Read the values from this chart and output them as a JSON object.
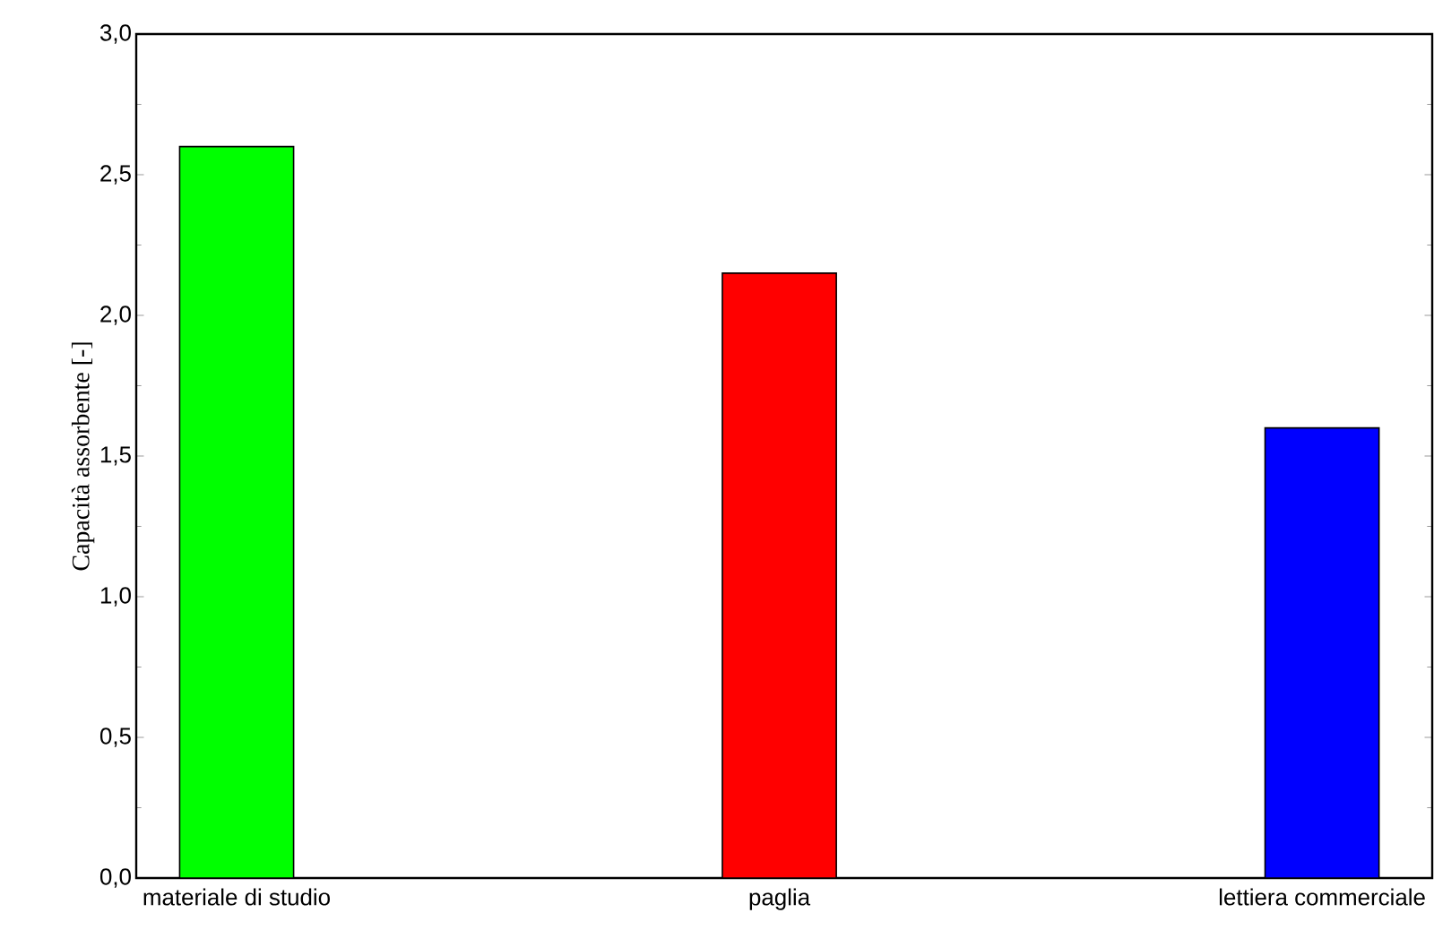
{
  "chart_data": {
    "type": "bar",
    "ylabel": "Capacità assorbente [-]",
    "categories": [
      "materiale di studio",
      "paglia",
      "lettiera commerciale"
    ],
    "values": [
      2.6,
      2.15,
      1.6
    ],
    "colors": [
      "#00ff00",
      "#ff0000",
      "#0000ff"
    ],
    "ylim": [
      0,
      3
    ],
    "yticks": [
      {
        "value": 0,
        "label": "0,0"
      },
      {
        "value": 0.5,
        "label": "0,5"
      },
      {
        "value": 1,
        "label": "1,0"
      },
      {
        "value": 1.5,
        "label": "1,5"
      },
      {
        "value": 2,
        "label": "2,0"
      },
      {
        "value": 2.5,
        "label": "2,5"
      },
      {
        "value": 3,
        "label": "3,0"
      }
    ],
    "grid": false
  }
}
